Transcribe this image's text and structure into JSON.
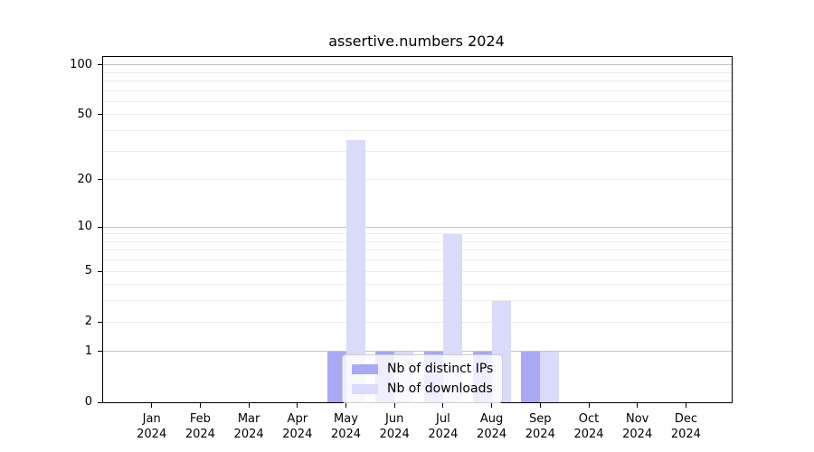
{
  "chart_data": {
    "type": "bar",
    "title": "assertive.numbers 2024",
    "categories": [
      "Jan",
      "Feb",
      "Mar",
      "Apr",
      "May",
      "Jun",
      "Jul",
      "Aug",
      "Sep",
      "Oct",
      "Nov",
      "Dec"
    ],
    "year_label": "2024",
    "series": [
      {
        "name": "Nb of distinct IPs",
        "color": "#a9a9f5",
        "values": [
          0,
          0,
          0,
          0,
          1,
          1,
          1,
          1,
          1,
          0,
          0,
          0
        ]
      },
      {
        "name": "Nb of downloads",
        "color": "#dadafa",
        "values": [
          0,
          0,
          0,
          0,
          35,
          1,
          9,
          3,
          1,
          0,
          0,
          0
        ]
      }
    ],
    "y_ticks": [
      0,
      1,
      2,
      5,
      10,
      20,
      50,
      100
    ],
    "y_minor_gridlines": [
      2,
      3,
      4,
      5,
      6,
      7,
      8,
      9,
      20,
      30,
      40,
      50,
      60,
      70,
      80,
      90
    ],
    "y_major_gridlines": [
      1,
      10,
      100
    ],
    "y_scale": "log10(value+1)",
    "ylim": [
      0,
      111.4
    ],
    "xlabel": "",
    "ylabel": "",
    "grid": true,
    "legend_position": "bottom-center"
  },
  "colors": {
    "axis": "#000000",
    "major_gridline": "#c4c4c4",
    "minor_gridline": "#ececec",
    "legend_border": "#cccccc",
    "background": "#ffffff"
  }
}
